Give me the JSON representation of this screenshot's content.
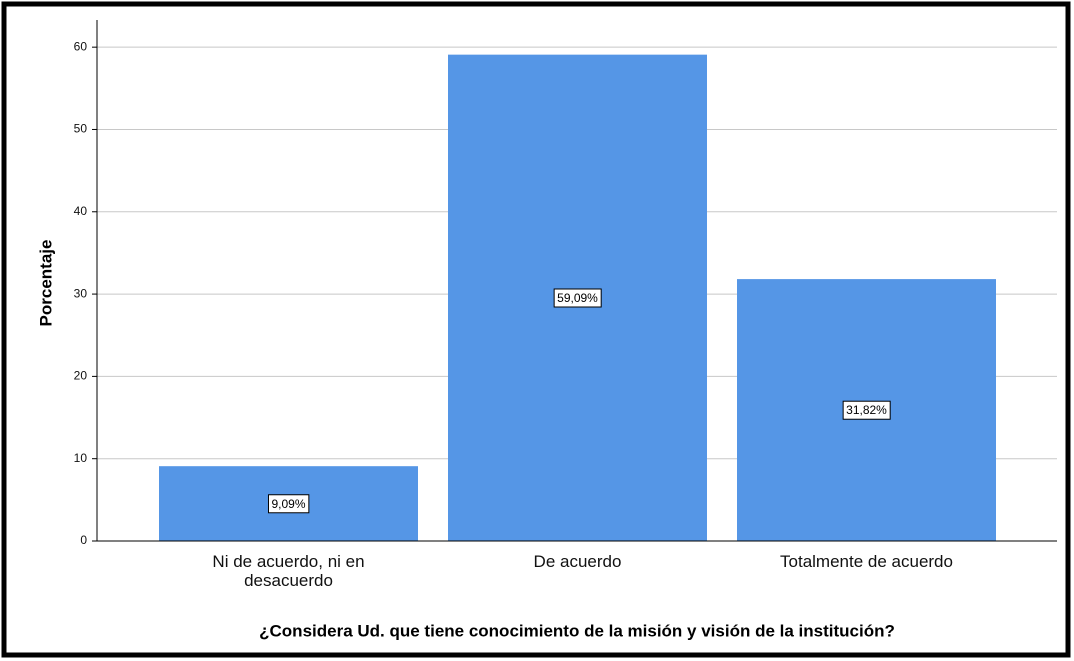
{
  "chart_data": {
    "type": "bar",
    "categories": [
      "Ni de acuerdo, ni en desacuerdo",
      "De acuerdo",
      "Totalmente de acuerdo"
    ],
    "values": [
      9.09,
      59.09,
      31.82
    ],
    "value_labels": [
      "9,09%",
      "59,09%",
      "31,82%"
    ],
    "color": "#5596e6",
    "ylim": [
      0,
      63.3
    ],
    "yticks": [
      0,
      10,
      20,
      30,
      40,
      50,
      60
    ],
    "grid": true,
    "y_label": "Porcentaje",
    "x_label": "¿Considera Ud. que tiene conocimiento de la misión y visión de la institución?"
  }
}
